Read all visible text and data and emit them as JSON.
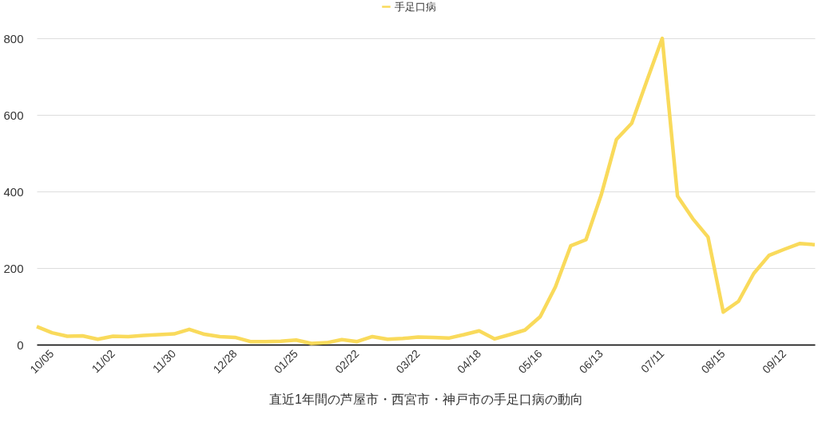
{
  "chart_data": {
    "type": "line",
    "xlabel": "直近1年間の芦屋市・西宮市・神戸市の手足口病の動向",
    "categories": [
      "10/05",
      null,
      null,
      null,
      "11/02",
      null,
      null,
      null,
      "11/30",
      null,
      null,
      null,
      "12/28",
      null,
      null,
      null,
      "01/25",
      null,
      null,
      null,
      "02/22",
      null,
      null,
      null,
      "03/22",
      null,
      null,
      null,
      "04/18",
      null,
      null,
      null,
      "05/16",
      null,
      null,
      null,
      "06/13",
      null,
      null,
      null,
      "07/11",
      null,
      null,
      null,
      "08/15",
      null,
      null,
      null,
      "09/12",
      null,
      null,
      null
    ],
    "series": [
      {
        "name": "手足口病",
        "color": "#f9da5b",
        "values": [
          47,
          31,
          22,
          23,
          14,
          22,
          21,
          24,
          26,
          28,
          40,
          27,
          21,
          19,
          8,
          8,
          9,
          12,
          3,
          5,
          13,
          8,
          21,
          14,
          16,
          20,
          19,
          17,
          26,
          36,
          15,
          26,
          38,
          73,
          151,
          258,
          274,
          391,
          536,
          578,
          690,
          800,
          388,
          329,
          281,
          85,
          113,
          186,
          233,
          249,
          264,
          261
        ]
      }
    ],
    "ylim": [
      0,
      800
    ],
    "yticks": [
      0,
      200,
      400,
      600,
      800
    ],
    "grid": "y",
    "legend": "top",
    "line_style": "solid"
  }
}
